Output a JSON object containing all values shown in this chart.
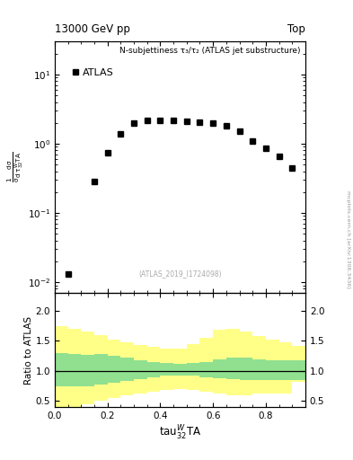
{
  "title_left": "13000 GeV pp",
  "title_right": "Top",
  "plot_label": "N-subjettiness τ₃/τ₂ (ATLAS jet substructure)",
  "atlas_label": "ATLAS",
  "inspire_label": "(ATLAS_2019_I1724098)",
  "watermark": "mcplots.cern.ch [arXiv:1306.3436]",
  "ylabel_ratio": "Ratio to ATLAS",
  "data_x": [
    0.05,
    0.15,
    0.2,
    0.25,
    0.3,
    0.35,
    0.4,
    0.45,
    0.5,
    0.55,
    0.6,
    0.65,
    0.7,
    0.75,
    0.8,
    0.85,
    0.9
  ],
  "data_y": [
    0.013,
    0.28,
    0.75,
    1.4,
    2.0,
    2.2,
    2.2,
    2.15,
    2.1,
    2.05,
    2.0,
    1.8,
    1.5,
    1.1,
    0.85,
    0.65,
    0.45
  ],
  "xlim": [
    0.0,
    0.95
  ],
  "ylim_main": [
    0.007,
    30
  ],
  "ylim_ratio": [
    0.4,
    2.3
  ],
  "ratio_yticks": [
    0.5,
    1.0,
    1.5,
    2.0
  ],
  "rx": [
    0.0,
    0.05,
    0.1,
    0.15,
    0.2,
    0.25,
    0.3,
    0.35,
    0.4,
    0.45,
    0.5,
    0.55,
    0.6,
    0.65,
    0.7,
    0.75,
    0.8,
    0.85,
    0.9
  ],
  "rg_lo": [
    0.75,
    0.75,
    0.75,
    0.78,
    0.8,
    0.83,
    0.87,
    0.9,
    0.92,
    0.93,
    0.92,
    0.9,
    0.88,
    0.86,
    0.85,
    0.85,
    0.85,
    0.85,
    0.85
  ],
  "rg_hi": [
    1.3,
    1.28,
    1.27,
    1.28,
    1.25,
    1.22,
    1.18,
    1.15,
    1.13,
    1.12,
    1.13,
    1.15,
    1.2,
    1.22,
    1.22,
    1.2,
    1.18,
    1.18,
    1.18
  ],
  "ry_lo": [
    0.38,
    0.4,
    0.45,
    0.5,
    0.55,
    0.6,
    0.62,
    0.65,
    0.68,
    0.7,
    0.68,
    0.65,
    0.62,
    0.6,
    0.6,
    0.62,
    0.62,
    0.62,
    0.82
  ],
  "ry_hi": [
    1.75,
    1.7,
    1.65,
    1.6,
    1.52,
    1.47,
    1.43,
    1.4,
    1.38,
    1.38,
    1.45,
    1.55,
    1.68,
    1.7,
    1.65,
    1.58,
    1.52,
    1.48,
    1.42
  ],
  "green_color": "#90e090",
  "yellow_color": "#ffff88",
  "fig_bg": "white"
}
